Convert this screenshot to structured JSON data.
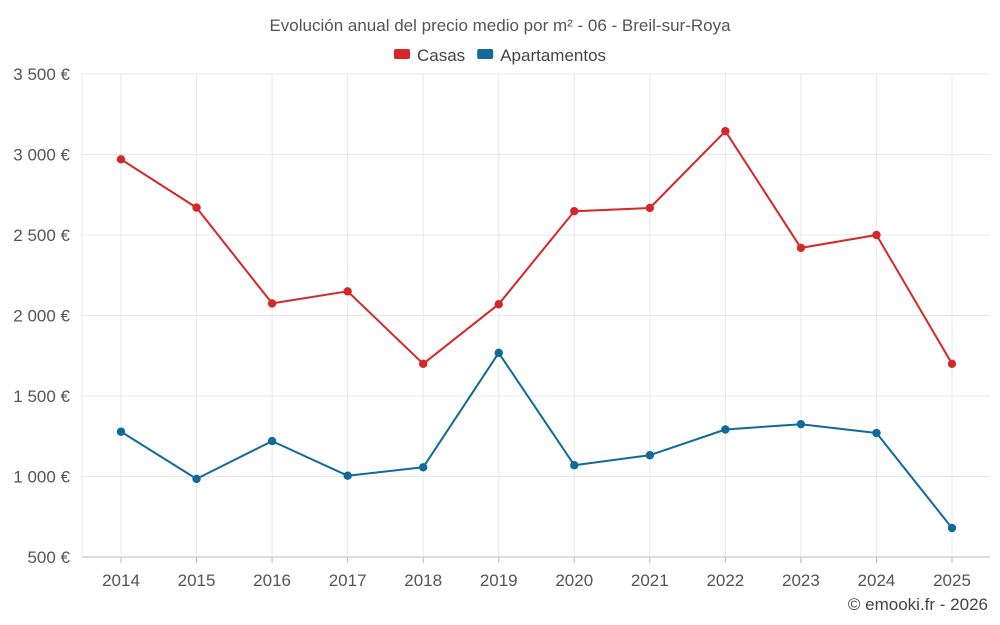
{
  "chart_data": {
    "type": "line",
    "title": "Evolución anual del precio medio por m² - 06 - Breil-sur-Roya",
    "x": [
      "2014",
      "2015",
      "2016",
      "2017",
      "2018",
      "2019",
      "2020",
      "2021",
      "2022",
      "2023",
      "2024",
      "2025"
    ],
    "series": [
      {
        "name": "Casas",
        "color": "#d62728",
        "values": [
          2970,
          2670,
          2075,
          2150,
          1700,
          2070,
          2648,
          2668,
          3145,
          2420,
          2500,
          1700
        ]
      },
      {
        "name": "Apartamentos",
        "color": "#106a9a",
        "values": [
          1278,
          985,
          1220,
          1005,
          1057,
          1768,
          1070,
          1132,
          1292,
          1325,
          1270,
          680
        ]
      }
    ],
    "ylim": [
      500,
      3500
    ],
    "yticks": [
      500,
      1000,
      1500,
      2000,
      2500,
      3000,
      3500
    ],
    "ytick_labels": [
      "500 €",
      "1 000 €",
      "1 500 €",
      "2 000 €",
      "2 500 €",
      "3 000 €",
      "3 500 €"
    ],
    "xlabel": "",
    "ylabel": "",
    "grid": true,
    "legend_position": "top-center"
  },
  "credit": "© emooki.fr - 2026"
}
